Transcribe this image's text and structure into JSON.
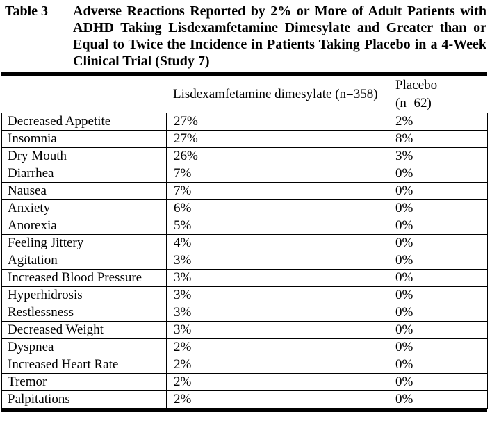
{
  "document": {
    "table_label": "Table 3",
    "table_title": "Adverse Reactions Reported by 2% or More of Adult Patients with ADHD Taking Lisdexamfetamine Dimesylate and Greater than or Equal to Twice the Incidence in Patients Taking Placebo in a 4-Week Clinical Trial (Study 7)"
  },
  "table": {
    "header": {
      "reaction_col": "",
      "lisdex_col": "Lisdexamfetamine dimesylate (n=358)",
      "placebo_line1": "Placebo",
      "placebo_line2": "(n=62)"
    },
    "rows": [
      {
        "reaction": "Decreased Appetite",
        "lisdex": "27%",
        "placebo": "2%"
      },
      {
        "reaction": "Insomnia",
        "lisdex": "27%",
        "placebo": "8%"
      },
      {
        "reaction": "Dry Mouth",
        "lisdex": "26%",
        "placebo": "3%"
      },
      {
        "reaction": "Diarrhea",
        "lisdex": "7%",
        "placebo": "0%"
      },
      {
        "reaction": "Nausea",
        "lisdex": "7%",
        "placebo": "0%"
      },
      {
        "reaction": "Anxiety",
        "lisdex": "6%",
        "placebo": "0%"
      },
      {
        "reaction": "Anorexia",
        "lisdex": "5%",
        "placebo": "0%"
      },
      {
        "reaction": "Feeling Jittery",
        "lisdex": "4%",
        "placebo": "0%"
      },
      {
        "reaction": "Agitation",
        "lisdex": "3%",
        "placebo": "0%"
      },
      {
        "reaction": "Increased Blood Pressure",
        "lisdex": "3%",
        "placebo": "0%"
      },
      {
        "reaction": "Hyperhidrosis",
        "lisdex": "3%",
        "placebo": "0%"
      },
      {
        "reaction": "Restlessness",
        "lisdex": "3%",
        "placebo": "0%"
      },
      {
        "reaction": "Decreased Weight",
        "lisdex": "3%",
        "placebo": "0%"
      },
      {
        "reaction": "Dyspnea",
        "lisdex": "2%",
        "placebo": "0%"
      },
      {
        "reaction": "Increased Heart Rate",
        "lisdex": "2%",
        "placebo": "0%"
      },
      {
        "reaction": "Tremor",
        "lisdex": "2%",
        "placebo": "0%"
      },
      {
        "reaction": "Palpitations",
        "lisdex": "2%",
        "placebo": "0%"
      }
    ]
  },
  "colors": {
    "text": "#000000",
    "background": "#ffffff",
    "rule": "#000000"
  }
}
